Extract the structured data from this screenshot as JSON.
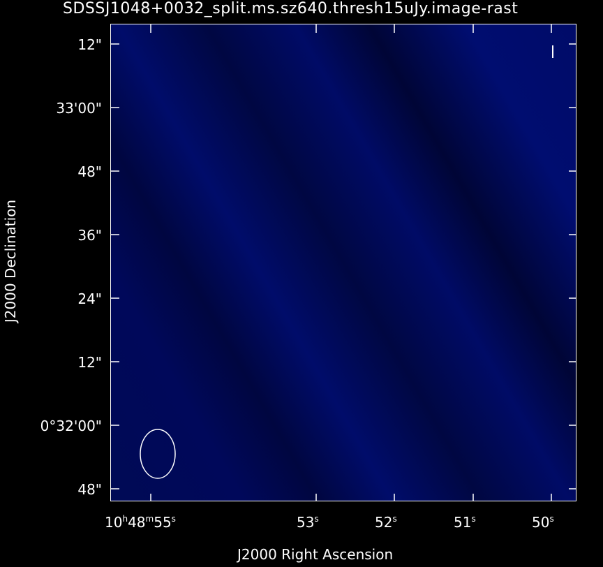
{
  "image_title": "SDSSJ1048+0032_split.ms.sz640.thresh15uJy.image-rast",
  "axes": {
    "y_title": "J2000 Declination",
    "x_title": "J2000 Right Ascension",
    "y_ticks": [
      "12\"",
      "33'00\"",
      "48\"",
      "36\"",
      "24\"",
      "12\"",
      "0°32'00\"",
      "48\""
    ],
    "x_ticks": [
      {
        "h": "10",
        "m": "48",
        "s": "55"
      },
      {
        "s": "53"
      },
      {
        "s": "52"
      },
      {
        "s": "51"
      },
      {
        "s": "50"
      }
    ]
  },
  "colors": {
    "background": "#000000",
    "map": "#00095e",
    "frame": "#ffffff"
  }
}
